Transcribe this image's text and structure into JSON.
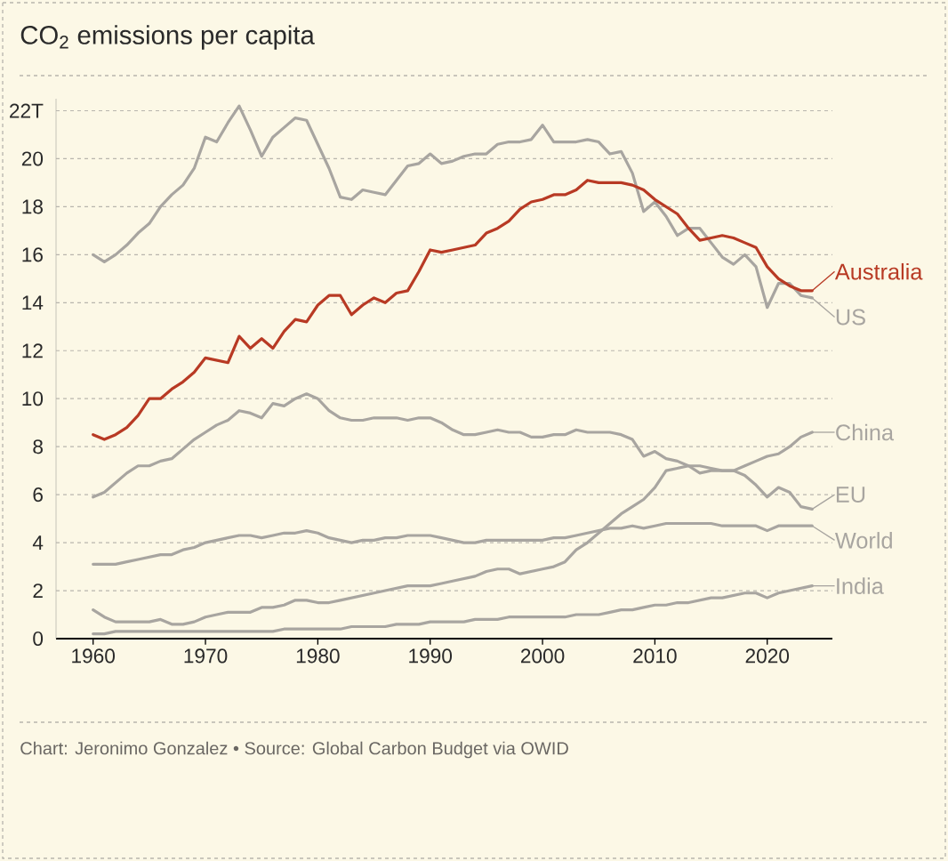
{
  "chart_data": {
    "type": "line",
    "title": "CO$_{2}$ emissions per capita",
    "annotations": [
      "Chart: Jeronimo Gonzalez • Source: Global Carbon Budget via OWID"
    ],
    "x": [
      1960,
      1961,
      1962,
      1963,
      1964,
      1965,
      1966,
      1967,
      1968,
      1969,
      1970,
      1971,
      1972,
      1973,
      1974,
      1975,
      1976,
      1977,
      1978,
      1979,
      1980,
      1981,
      1982,
      1983,
      1984,
      1985,
      1986,
      1987,
      1988,
      1989,
      1990,
      1991,
      1992,
      1993,
      1994,
      1995,
      1996,
      1997,
      1998,
      1999,
      2000,
      2001,
      2002,
      2003,
      2004,
      2005,
      2006,
      2007,
      2008,
      2009,
      2010,
      2011,
      2012,
      2013,
      2014,
      2015,
      2016,
      2017,
      2018,
      2019,
      2020,
      2021,
      2022,
      2023,
      2024
    ],
    "series": [
      {
        "name": "US",
        "color": "#a8a5a0",
        "values": [
          16.0,
          15.7,
          16.0,
          16.4,
          16.9,
          17.3,
          18.0,
          18.5,
          18.9,
          19.6,
          20.9,
          20.7,
          21.5,
          22.2,
          21.2,
          20.1,
          20.9,
          21.3,
          21.7,
          21.6,
          20.6,
          19.6,
          18.4,
          18.3,
          18.7,
          18.6,
          18.5,
          19.1,
          19.7,
          19.8,
          20.2,
          19.8,
          19.9,
          20.1,
          20.2,
          20.2,
          20.6,
          20.7,
          20.7,
          20.8,
          21.4,
          20.7,
          20.7,
          20.7,
          20.8,
          20.7,
          20.2,
          20.3,
          19.4,
          17.8,
          18.2,
          17.6,
          16.8,
          17.1,
          17.1,
          16.5,
          15.9,
          15.6,
          16.0,
          15.5,
          13.8,
          14.8,
          14.8,
          14.3,
          14.2
        ]
      },
      {
        "name": "China",
        "color": "#a8a5a0",
        "values": [
          1.2,
          0.9,
          0.7,
          0.7,
          0.7,
          0.7,
          0.8,
          0.6,
          0.6,
          0.7,
          0.9,
          1.0,
          1.1,
          1.1,
          1.1,
          1.3,
          1.3,
          1.4,
          1.6,
          1.6,
          1.5,
          1.5,
          1.6,
          1.7,
          1.8,
          1.9,
          2.0,
          2.1,
          2.2,
          2.2,
          2.2,
          2.3,
          2.4,
          2.5,
          2.6,
          2.8,
          2.9,
          2.9,
          2.7,
          2.8,
          2.9,
          3.0,
          3.2,
          3.7,
          4.0,
          4.4,
          4.8,
          5.2,
          5.5,
          5.8,
          6.3,
          7.0,
          7.1,
          7.2,
          7.2,
          7.1,
          7.0,
          7.0,
          7.2,
          7.4,
          7.6,
          7.7,
          8.0,
          8.4,
          8.6
        ]
      },
      {
        "name": "EU",
        "color": "#a8a5a0",
        "values": [
          5.9,
          6.1,
          6.5,
          6.9,
          7.2,
          7.2,
          7.4,
          7.5,
          7.9,
          8.3,
          8.6,
          8.9,
          9.1,
          9.5,
          9.4,
          9.2,
          9.8,
          9.7,
          10.0,
          10.2,
          10.0,
          9.5,
          9.2,
          9.1,
          9.1,
          9.2,
          9.2,
          9.2,
          9.1,
          9.2,
          9.2,
          9.0,
          8.7,
          8.5,
          8.5,
          8.6,
          8.7,
          8.6,
          8.6,
          8.4,
          8.4,
          8.5,
          8.5,
          8.7,
          8.6,
          8.6,
          8.6,
          8.5,
          8.3,
          7.6,
          7.8,
          7.5,
          7.4,
          7.2,
          6.9,
          7.0,
          7.0,
          7.0,
          6.8,
          6.4,
          5.9,
          6.3,
          6.1,
          5.5,
          5.4
        ]
      },
      {
        "name": "World",
        "color": "#a8a5a0",
        "values": [
          3.1,
          3.1,
          3.1,
          3.2,
          3.3,
          3.4,
          3.5,
          3.5,
          3.7,
          3.8,
          4.0,
          4.1,
          4.2,
          4.3,
          4.3,
          4.2,
          4.3,
          4.4,
          4.4,
          4.5,
          4.4,
          4.2,
          4.1,
          4.0,
          4.1,
          4.1,
          4.2,
          4.2,
          4.3,
          4.3,
          4.3,
          4.2,
          4.1,
          4.0,
          4.0,
          4.1,
          4.1,
          4.1,
          4.1,
          4.1,
          4.1,
          4.2,
          4.2,
          4.3,
          4.4,
          4.5,
          4.6,
          4.6,
          4.7,
          4.6,
          4.7,
          4.8,
          4.8,
          4.8,
          4.8,
          4.8,
          4.7,
          4.7,
          4.7,
          4.7,
          4.5,
          4.7,
          4.7,
          4.7,
          4.7
        ]
      },
      {
        "name": "India",
        "color": "#a8a5a0",
        "values": [
          0.2,
          0.2,
          0.3,
          0.3,
          0.3,
          0.3,
          0.3,
          0.3,
          0.3,
          0.3,
          0.3,
          0.3,
          0.3,
          0.3,
          0.3,
          0.3,
          0.3,
          0.4,
          0.4,
          0.4,
          0.4,
          0.4,
          0.4,
          0.5,
          0.5,
          0.5,
          0.5,
          0.6,
          0.6,
          0.6,
          0.7,
          0.7,
          0.7,
          0.7,
          0.8,
          0.8,
          0.8,
          0.9,
          0.9,
          0.9,
          0.9,
          0.9,
          0.9,
          1.0,
          1.0,
          1.0,
          1.1,
          1.2,
          1.2,
          1.3,
          1.4,
          1.4,
          1.5,
          1.5,
          1.6,
          1.7,
          1.7,
          1.8,
          1.9,
          1.9,
          1.7,
          1.9,
          2.0,
          2.1,
          2.2
        ]
      },
      {
        "name": "Australia",
        "color": "#b83a24",
        "values": [
          8.5,
          8.3,
          8.5,
          8.8,
          9.3,
          10.0,
          10.0,
          10.4,
          10.7,
          11.1,
          11.7,
          11.6,
          11.5,
          12.6,
          12.1,
          12.5,
          12.1,
          12.8,
          13.3,
          13.2,
          13.9,
          14.3,
          14.3,
          13.5,
          13.9,
          14.2,
          14.0,
          14.4,
          14.5,
          15.3,
          16.2,
          16.1,
          16.2,
          16.3,
          16.4,
          16.9,
          17.1,
          17.4,
          17.9,
          18.2,
          18.3,
          18.5,
          18.5,
          18.7,
          19.1,
          19.0,
          19.0,
          19.0,
          18.9,
          18.7,
          18.3,
          18.0,
          17.7,
          17.1,
          16.6,
          16.7,
          16.8,
          16.7,
          16.5,
          16.3,
          15.5,
          15.0,
          14.7,
          14.5,
          14.5
        ]
      }
    ],
    "xlim": [
      1956.7,
      2025.8
    ],
    "ylim": [
      0,
      22.5
    ],
    "xticks": [
      1960,
      1970,
      1980,
      1990,
      2000,
      2010,
      2020
    ],
    "yticks": [
      0,
      2,
      4,
      6,
      8,
      10,
      12,
      14,
      16,
      18,
      20,
      {
        "value": 22,
        "label": "22T"
      }
    ],
    "grid": "y",
    "legend": "right"
  }
}
